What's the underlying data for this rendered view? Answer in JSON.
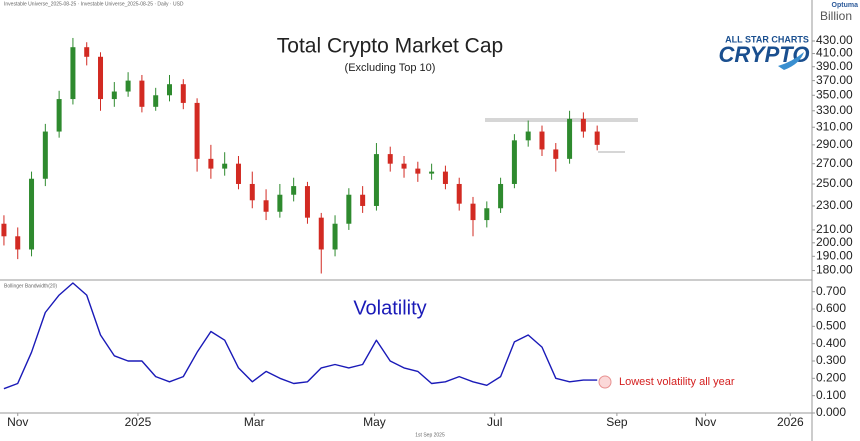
{
  "brand": {
    "vendor": "Optuma",
    "logo_top": "ALL STAR CHARTS",
    "logo_main": "CRYPTO"
  },
  "chart_data": [
    {
      "type": "candlestick",
      "header": "Investable Universe_2025-08-25 · Investable Universe_2025-08-25 · Daily · USD",
      "title": "Total Crypto Market Cap",
      "subtitle": "(Excluding Top 10)",
      "y_unit": "Billion",
      "x": [
        -7,
        0,
        7,
        14,
        21,
        28,
        35,
        42,
        49,
        56,
        63,
        70,
        77,
        84,
        91,
        98,
        105,
        112,
        119,
        126,
        133,
        140,
        147,
        154,
        161,
        168,
        175,
        182,
        189,
        196,
        203,
        210,
        217,
        224,
        231,
        238,
        245,
        252,
        259,
        266,
        273,
        280,
        287,
        294
      ],
      "open": [
        215,
        205,
        195,
        255,
        305,
        345,
        420,
        405,
        345,
        355,
        370,
        335,
        350,
        365,
        340,
        275,
        265,
        270,
        250,
        235,
        225,
        240,
        248,
        220,
        195,
        215,
        240,
        230,
        280,
        270,
        265,
        260,
        262,
        250,
        232,
        218,
        228,
        250,
        295,
        305,
        285,
        275,
        320,
        305
      ],
      "high": [
        222,
        212,
        262,
        314,
        356,
        435,
        428,
        412,
        368,
        382,
        378,
        360,
        378,
        372,
        346,
        290,
        282,
        278,
        262,
        245,
        250,
        256,
        252,
        224,
        222,
        246,
        248,
        292,
        288,
        278,
        272,
        270,
        268,
        256,
        238,
        234,
        256,
        302,
        318,
        312,
        292,
        330,
        328,
        312
      ],
      "low": [
        198,
        188,
        190,
        248,
        298,
        338,
        392,
        330,
        335,
        348,
        328,
        330,
        342,
        332,
        262,
        255,
        258,
        245,
        228,
        218,
        220,
        234,
        215,
        178,
        190,
        210,
        224,
        226,
        262,
        256,
        252,
        254,
        245,
        226,
        205,
        212,
        224,
        246,
        288,
        278,
        262,
        270,
        298,
        284
      ],
      "close": [
        205,
        195,
        255,
        305,
        345,
        420,
        405,
        345,
        355,
        370,
        335,
        350,
        365,
        340,
        275,
        265,
        270,
        250,
        235,
        225,
        240,
        248,
        220,
        195,
        215,
        240,
        230,
        280,
        270,
        265,
        260,
        262,
        250,
        232,
        218,
        228,
        250,
        295,
        305,
        285,
        275,
        320,
        305,
        290
      ],
      "up_color": "#2e8a2e",
      "down_color": "#d22a22",
      "log_scale": true,
      "xlim": [
        -9,
        403
      ],
      "ylim": [
        175,
        480
      ],
      "yticks": [
        {
          "value": 180,
          "label": "180.00"
        },
        {
          "value": 190,
          "label": "190.00"
        },
        {
          "value": 200,
          "label": "200.00"
        },
        {
          "value": 210,
          "label": "210.00"
        },
        {
          "value": 230,
          "label": "230.00"
        },
        {
          "value": 250,
          "label": "250.00"
        },
        {
          "value": 270,
          "label": "270.00"
        },
        {
          "value": 290,
          "label": "290.00"
        },
        {
          "value": 310,
          "label": "310.00"
        },
        {
          "value": 330,
          "label": "330.00"
        },
        {
          "value": 350,
          "label": "350.00"
        },
        {
          "value": 370,
          "label": "370.00"
        },
        {
          "value": 390,
          "label": "390.00"
        },
        {
          "value": 410,
          "label": "410.00"
        },
        {
          "value": 430,
          "label": "430.00"
        }
      ]
    },
    {
      "type": "line",
      "indicator": "Bollinger Bandwidth(20)",
      "annotation": "Lowest volatility all year",
      "footer": "1st Sep 2025",
      "x": [
        -7,
        0,
        7,
        14,
        21,
        28,
        35,
        42,
        49,
        56,
        63,
        70,
        77,
        84,
        91,
        98,
        105,
        112,
        119,
        126,
        133,
        140,
        147,
        154,
        161,
        168,
        175,
        182,
        189,
        196,
        203,
        210,
        217,
        224,
        231,
        238,
        245,
        252,
        259,
        266,
        273,
        280,
        287,
        294
      ],
      "series": [
        {
          "name": "Volatility",
          "color": "#1a1ab8",
          "values": [
            0.14,
            0.17,
            0.35,
            0.58,
            0.68,
            0.75,
            0.68,
            0.45,
            0.33,
            0.3,
            0.3,
            0.21,
            0.18,
            0.21,
            0.35,
            0.47,
            0.42,
            0.26,
            0.18,
            0.24,
            0.2,
            0.17,
            0.18,
            0.26,
            0.28,
            0.26,
            0.28,
            0.42,
            0.3,
            0.26,
            0.24,
            0.17,
            0.18,
            0.21,
            0.18,
            0.16,
            0.21,
            0.41,
            0.45,
            0.38,
            0.2,
            0.18,
            0.19,
            0.19
          ]
        }
      ],
      "xlim": [
        -9,
        403
      ],
      "ylim": [
        0,
        0.75
      ],
      "yticks": [
        {
          "value": 0,
          "label": "0.000"
        },
        {
          "value": 0.1,
          "label": "0.100"
        },
        {
          "value": 0.2,
          "label": "0.200"
        },
        {
          "value": 0.3,
          "label": "0.300"
        },
        {
          "value": 0.4,
          "label": "0.400"
        },
        {
          "value": 0.5,
          "label": "0.500"
        },
        {
          "value": 0.6,
          "label": "0.600"
        },
        {
          "value": 0.7,
          "label": "0.700"
        }
      ],
      "xticks": [
        {
          "value": 0,
          "label": "Nov"
        },
        {
          "value": 61,
          "label": "2025"
        },
        {
          "value": 120,
          "label": "Mar"
        },
        {
          "value": 181,
          "label": "May"
        },
        {
          "value": 242,
          "label": "Jul"
        },
        {
          "value": 304,
          "label": "Sep"
        },
        {
          "value": 349,
          "label": "Nov"
        },
        {
          "value": 392,
          "label": "2026"
        }
      ]
    }
  ]
}
